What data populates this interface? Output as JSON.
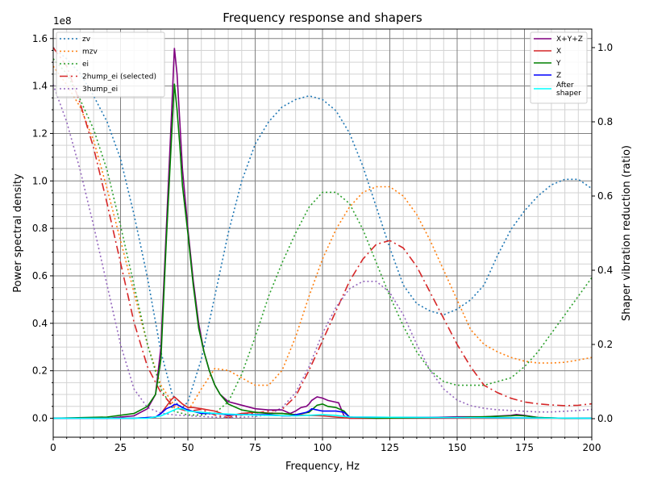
{
  "chart_data": {
    "type": "line",
    "title": "Frequency response and shapers",
    "xlabel": "Frequency, Hz",
    "ylabel": "Power spectral density",
    "y2label": "Shaper vibration reduction (ratio)",
    "y_offset_text": "1e8",
    "xlim": [
      0,
      200
    ],
    "ylim": [
      -0.08,
      1.64
    ],
    "y2lim": [
      -0.05,
      1.05
    ],
    "x_ticks": [
      "0",
      "25",
      "50",
      "75",
      "100",
      "125",
      "150",
      "175",
      "200"
    ],
    "y_ticks": [
      "0.0",
      "0.2",
      "0.4",
      "0.6",
      "0.8",
      "1.0",
      "1.2",
      "1.4",
      "1.6"
    ],
    "y2_ticks": [
      "0.0",
      "0.2",
      "0.4",
      "0.6",
      "0.8",
      "1.0"
    ],
    "grid": true,
    "legend_left_placement": "top-left",
    "legend_right_placement": "top-right",
    "psd_series": [
      {
        "name": "X+Y+Z",
        "color": "#800080",
        "x": [
          0,
          20,
          30,
          35,
          38,
          40,
          42,
          44,
          45,
          46,
          47,
          48,
          50,
          52,
          54,
          56,
          58,
          60,
          62,
          65,
          70,
          75,
          80,
          85,
          88,
          90,
          92,
          94,
          95,
          96,
          98,
          100,
          102,
          104,
          106,
          108,
          110,
          120,
          140,
          150,
          160,
          170,
          172,
          175,
          180,
          190,
          200
        ],
        "y": [
          0,
          0,
          0.01,
          0.04,
          0.1,
          0.3,
          0.8,
          1.3,
          1.56,
          1.45,
          1.25,
          1.05,
          0.8,
          0.58,
          0.4,
          0.28,
          0.2,
          0.14,
          0.1,
          0.07,
          0.055,
          0.04,
          0.035,
          0.035,
          0.02,
          0.03,
          0.045,
          0.05,
          0.06,
          0.075,
          0.09,
          0.085,
          0.075,
          0.07,
          0.065,
          0.01,
          0,
          0,
          0.003,
          0.006,
          0.006,
          0.012,
          0.016,
          0.012,
          0.003,
          0,
          0
        ]
      },
      {
        "name": "X",
        "color": "#d62728",
        "x": [
          0,
          30,
          38,
          40,
          42,
          44,
          45,
          46,
          48,
          50,
          52,
          55,
          60,
          65,
          70,
          75,
          80,
          85,
          90,
          95,
          100,
          105,
          110,
          200
        ],
        "y": [
          0,
          0,
          0.005,
          0.02,
          0.05,
          0.08,
          0.09,
          0.08,
          0.06,
          0.045,
          0.045,
          0.04,
          0.03,
          0.01,
          0.02,
          0.025,
          0.022,
          0.02,
          0.015,
          0.012,
          0.01,
          0.005,
          0,
          0
        ]
      },
      {
        "name": "Y",
        "color": "#008000",
        "x": [
          0,
          20,
          30,
          35,
          38,
          40,
          42,
          44,
          45,
          46,
          47,
          48,
          50,
          52,
          54,
          56,
          58,
          60,
          62,
          65,
          70,
          75,
          80,
          85,
          90,
          95,
          98,
          100,
          102,
          105,
          108,
          110,
          120,
          150,
          160,
          170,
          172,
          175,
          180,
          190,
          200
        ],
        "y": [
          0,
          0.005,
          0.02,
          0.05,
          0.1,
          0.25,
          0.75,
          1.2,
          1.41,
          1.3,
          1.15,
          0.98,
          0.78,
          0.56,
          0.38,
          0.28,
          0.2,
          0.14,
          0.1,
          0.06,
          0.035,
          0.025,
          0.02,
          0.02,
          0.015,
          0.025,
          0.055,
          0.06,
          0.05,
          0.045,
          0.03,
          0.005,
          0,
          0.003,
          0.006,
          0.01,
          0.012,
          0.01,
          0.003,
          0,
          0
        ]
      },
      {
        "name": "Z",
        "color": "#0000ff",
        "x": [
          0,
          30,
          38,
          40,
          42,
          44,
          45,
          46,
          48,
          50,
          55,
          60,
          65,
          70,
          80,
          85,
          88,
          90,
          92,
          94,
          95,
          96,
          98,
          100,
          102,
          105,
          108,
          110,
          200
        ],
        "y": [
          0,
          0,
          0.005,
          0.02,
          0.04,
          0.05,
          0.058,
          0.058,
          0.045,
          0.035,
          0.02,
          0.02,
          0.015,
          0.015,
          0.015,
          0.01,
          0.01,
          0.015,
          0.02,
          0.025,
          0.03,
          0.04,
          0.035,
          0.03,
          0.03,
          0.03,
          0.025,
          0.005,
          0
        ]
      },
      {
        "name": "After\nshaper",
        "color": "#00ffff",
        "x": [
          0,
          35,
          40,
          42,
          44,
          46,
          48,
          50,
          55,
          60,
          70,
          80,
          90,
          100,
          105,
          110,
          200
        ],
        "y": [
          0,
          0,
          0.01,
          0.02,
          0.03,
          0.04,
          0.04,
          0.03,
          0.025,
          0.02,
          0.015,
          0.012,
          0.01,
          0.015,
          0.012,
          0.005,
          0
        ]
      }
    ],
    "shaper_series": [
      {
        "name": "zv",
        "color": "#1f77b4",
        "dash": "dotted",
        "x": [
          0,
          5,
          10,
          15,
          20,
          25,
          30,
          35,
          40,
          44,
          46,
          48,
          50,
          55,
          60,
          65,
          70,
          75,
          80,
          85,
          90,
          95,
          100,
          105,
          110,
          115,
          120,
          125,
          130,
          135,
          140,
          145,
          150,
          155,
          160,
          165,
          170,
          175,
          180,
          185,
          190,
          195,
          200
        ],
        "y": [
          1.0,
          0.97,
          0.93,
          0.87,
          0.8,
          0.7,
          0.55,
          0.38,
          0.18,
          0.07,
          0.04,
          0.03,
          0.045,
          0.16,
          0.33,
          0.5,
          0.64,
          0.74,
          0.8,
          0.84,
          0.86,
          0.87,
          0.86,
          0.83,
          0.77,
          0.68,
          0.57,
          0.46,
          0.36,
          0.31,
          0.29,
          0.28,
          0.295,
          0.32,
          0.36,
          0.44,
          0.51,
          0.56,
          0.6,
          0.63,
          0.645,
          0.645,
          0.62
        ]
      },
      {
        "name": "mzv",
        "color": "#ff7f0e",
        "dash": "dotted",
        "x": [
          0,
          5,
          10,
          15,
          20,
          25,
          30,
          35,
          40,
          45,
          50,
          55,
          60,
          65,
          70,
          75,
          80,
          85,
          90,
          95,
          100,
          105,
          110,
          115,
          120,
          125,
          130,
          135,
          140,
          145,
          150,
          155,
          160,
          165,
          170,
          175,
          180,
          185,
          190,
          195,
          200
        ],
        "y": [
          0.95,
          0.9,
          0.84,
          0.75,
          0.62,
          0.48,
          0.34,
          0.2,
          0.09,
          0.035,
          0.02,
          0.08,
          0.135,
          0.13,
          0.11,
          0.09,
          0.09,
          0.13,
          0.22,
          0.33,
          0.43,
          0.51,
          0.57,
          0.61,
          0.625,
          0.625,
          0.6,
          0.55,
          0.48,
          0.4,
          0.32,
          0.24,
          0.2,
          0.18,
          0.165,
          0.155,
          0.15,
          0.15,
          0.152,
          0.158,
          0.165
        ]
      },
      {
        "name": "ei",
        "color": "#2ca02c",
        "dash": "dotted",
        "x": [
          0,
          5,
          10,
          15,
          20,
          25,
          30,
          35,
          40,
          45,
          50,
          55,
          60,
          65,
          70,
          75,
          80,
          85,
          90,
          95,
          100,
          105,
          110,
          115,
          120,
          125,
          130,
          135,
          140,
          145,
          150,
          155,
          160,
          165,
          170,
          175,
          180,
          185,
          190,
          195,
          200
        ],
        "y": [
          0.97,
          0.93,
          0.86,
          0.78,
          0.67,
          0.52,
          0.36,
          0.2,
          0.08,
          0.02,
          0.01,
          0.01,
          0.015,
          0.045,
          0.12,
          0.22,
          0.33,
          0.42,
          0.5,
          0.57,
          0.61,
          0.61,
          0.58,
          0.51,
          0.42,
          0.33,
          0.25,
          0.18,
          0.13,
          0.1,
          0.09,
          0.09,
          0.09,
          0.1,
          0.11,
          0.14,
          0.18,
          0.23,
          0.28,
          0.33,
          0.38
        ]
      },
      {
        "name": "2hump_ei (selected)",
        "color": "#d62728",
        "dash": "dashdot",
        "x": [
          0,
          5,
          10,
          15,
          20,
          25,
          30,
          35,
          40,
          45,
          50,
          55,
          60,
          65,
          70,
          75,
          80,
          85,
          90,
          95,
          100,
          105,
          110,
          115,
          120,
          125,
          130,
          135,
          140,
          145,
          150,
          155,
          160,
          165,
          170,
          175,
          180,
          185,
          190,
          195,
          200
        ],
        "y": [
          1.0,
          0.95,
          0.85,
          0.73,
          0.58,
          0.42,
          0.26,
          0.14,
          0.07,
          0.03,
          0.02,
          0.025,
          0.01,
          0.003,
          0.01,
          0.015,
          0.02,
          0.025,
          0.06,
          0.13,
          0.21,
          0.29,
          0.37,
          0.43,
          0.47,
          0.48,
          0.46,
          0.41,
          0.34,
          0.27,
          0.2,
          0.14,
          0.09,
          0.07,
          0.055,
          0.045,
          0.04,
          0.037,
          0.035,
          0.036,
          0.04
        ]
      },
      {
        "name": "3hump_ei",
        "color": "#9467bd",
        "dash": "dotted",
        "x": [
          0,
          5,
          10,
          15,
          20,
          25,
          30,
          35,
          40,
          45,
          50,
          55,
          60,
          65,
          70,
          75,
          80,
          85,
          90,
          95,
          100,
          105,
          110,
          115,
          120,
          125,
          130,
          135,
          140,
          145,
          150,
          155,
          160,
          165,
          170,
          175,
          180,
          185,
          190,
          195,
          200
        ],
        "y": [
          0.9,
          0.8,
          0.67,
          0.52,
          0.36,
          0.2,
          0.08,
          0.03,
          0.015,
          0.01,
          0.008,
          0.006,
          0.004,
          0.003,
          0.004,
          0.006,
          0.01,
          0.03,
          0.07,
          0.14,
          0.23,
          0.3,
          0.35,
          0.37,
          0.37,
          0.34,
          0.28,
          0.2,
          0.13,
          0.08,
          0.05,
          0.035,
          0.028,
          0.024,
          0.022,
          0.02,
          0.018,
          0.018,
          0.02,
          0.022,
          0.025
        ]
      }
    ]
  }
}
